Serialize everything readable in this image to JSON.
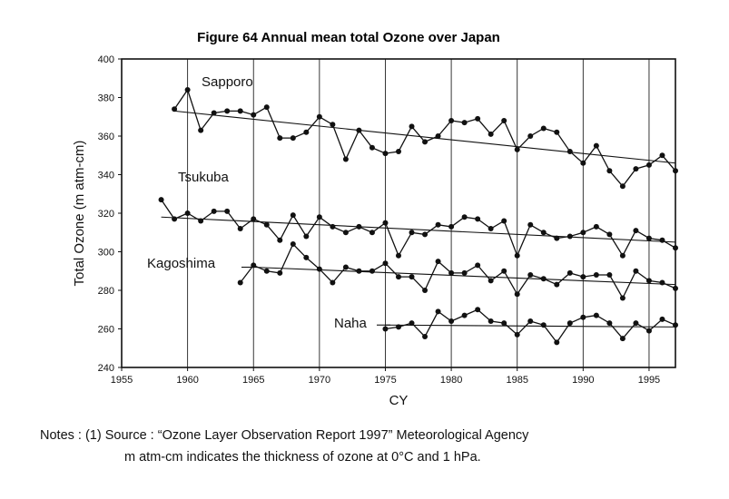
{
  "chart_data": {
    "type": "line",
    "title": "Figure 64 Annual mean total Ozone over Japan",
    "xlabel": "CY",
    "ylabel": "Total Ozone (m atm-cm)",
    "xlim": [
      1955,
      1997
    ],
    "ylim": [
      240,
      400
    ],
    "xticks": [
      1955,
      1960,
      1965,
      1970,
      1975,
      1980,
      1985,
      1990,
      1995
    ],
    "yticks": [
      240,
      260,
      280,
      300,
      320,
      340,
      360,
      380,
      400
    ],
    "grid": "vertical",
    "series": [
      {
        "name": "Sapporo",
        "x": [
          1959,
          1960,
          1961,
          1962,
          1963,
          1964,
          1965,
          1966,
          1967,
          1968,
          1969,
          1970,
          1971,
          1972,
          1973,
          1974,
          1975,
          1976,
          1977,
          1978,
          1979,
          1980,
          1981,
          1982,
          1983,
          1984,
          1985,
          1986,
          1987,
          1988,
          1989,
          1990,
          1991,
          1992,
          1993,
          1994,
          1995,
          1996,
          1997
        ],
        "values": [
          374,
          384,
          363,
          372,
          373,
          373,
          371,
          375,
          359,
          359,
          362,
          370,
          366,
          348,
          363,
          354,
          351,
          352,
          365,
          357,
          360,
          368,
          367,
          369,
          361,
          368,
          353,
          360,
          364,
          362,
          352,
          346,
          355,
          342,
          334,
          343,
          345,
          350,
          342
        ],
        "trend": [
          [
            1959,
            373
          ],
          [
            1997,
            346
          ]
        ]
      },
      {
        "name": "Tsukuba",
        "x": [
          1958,
          1959,
          1960,
          1961,
          1962,
          1963,
          1964,
          1965,
          1966,
          1967,
          1968,
          1969,
          1970,
          1971,
          1972,
          1973,
          1974,
          1975,
          1976,
          1977,
          1978,
          1979,
          1980,
          1981,
          1982,
          1983,
          1984,
          1985,
          1986,
          1987,
          1988,
          1989,
          1990,
          1991,
          1992,
          1993,
          1994,
          1995,
          1996,
          1997
        ],
        "values": [
          327,
          317,
          320,
          316,
          321,
          321,
          312,
          317,
          314,
          306,
          319,
          308,
          318,
          313,
          310,
          313,
          310,
          315,
          298,
          310,
          309,
          314,
          313,
          318,
          317,
          312,
          316,
          298,
          314,
          310,
          307,
          308,
          310,
          313,
          309,
          298,
          311,
          307,
          306,
          302
        ],
        "trend": [
          [
            1958,
            318
          ],
          [
            1997,
            305
          ]
        ]
      },
      {
        "name": "Kagoshima",
        "x": [
          1964,
          1965,
          1966,
          1967,
          1968,
          1969,
          1970,
          1971,
          1972,
          1973,
          1974,
          1975,
          1976,
          1977,
          1978,
          1979,
          1980,
          1981,
          1982,
          1983,
          1984,
          1985,
          1986,
          1987,
          1988,
          1989,
          1990,
          1991,
          1992,
          1993,
          1994,
          1995,
          1996,
          1997
        ],
        "values": [
          284,
          293,
          290,
          289,
          304,
          297,
          291,
          284,
          292,
          290,
          290,
          294,
          287,
          287,
          280,
          295,
          289,
          289,
          293,
          285,
          290,
          278,
          288,
          286,
          283,
          289,
          287,
          288,
          288,
          276,
          290,
          285,
          284,
          281
        ],
        "trend": [
          [
            1965,
            292
          ],
          [
            1997,
            283
          ]
        ]
      },
      {
        "name": "Naha",
        "x": [
          1975,
          1976,
          1977,
          1978,
          1979,
          1980,
          1981,
          1982,
          1983,
          1984,
          1985,
          1986,
          1987,
          1988,
          1989,
          1990,
          1991,
          1992,
          1993,
          1994,
          1995,
          1996,
          1997
        ],
        "values": [
          260,
          261,
          263,
          256,
          269,
          264,
          267,
          270,
          264,
          263,
          257,
          264,
          262,
          253,
          263,
          266,
          267,
          263,
          255,
          263,
          259,
          265,
          262
        ],
        "trend": [
          [
            1975,
            262
          ],
          [
            1997,
            261
          ]
        ]
      }
    ]
  },
  "notes": {
    "line1": "Notes : (1) Source : “Ozone Layer Observation Report 1997” Meteorological Agency",
    "line2": "m atm-cm indicates the thickness of ozone at 0°C and 1 hPa."
  }
}
